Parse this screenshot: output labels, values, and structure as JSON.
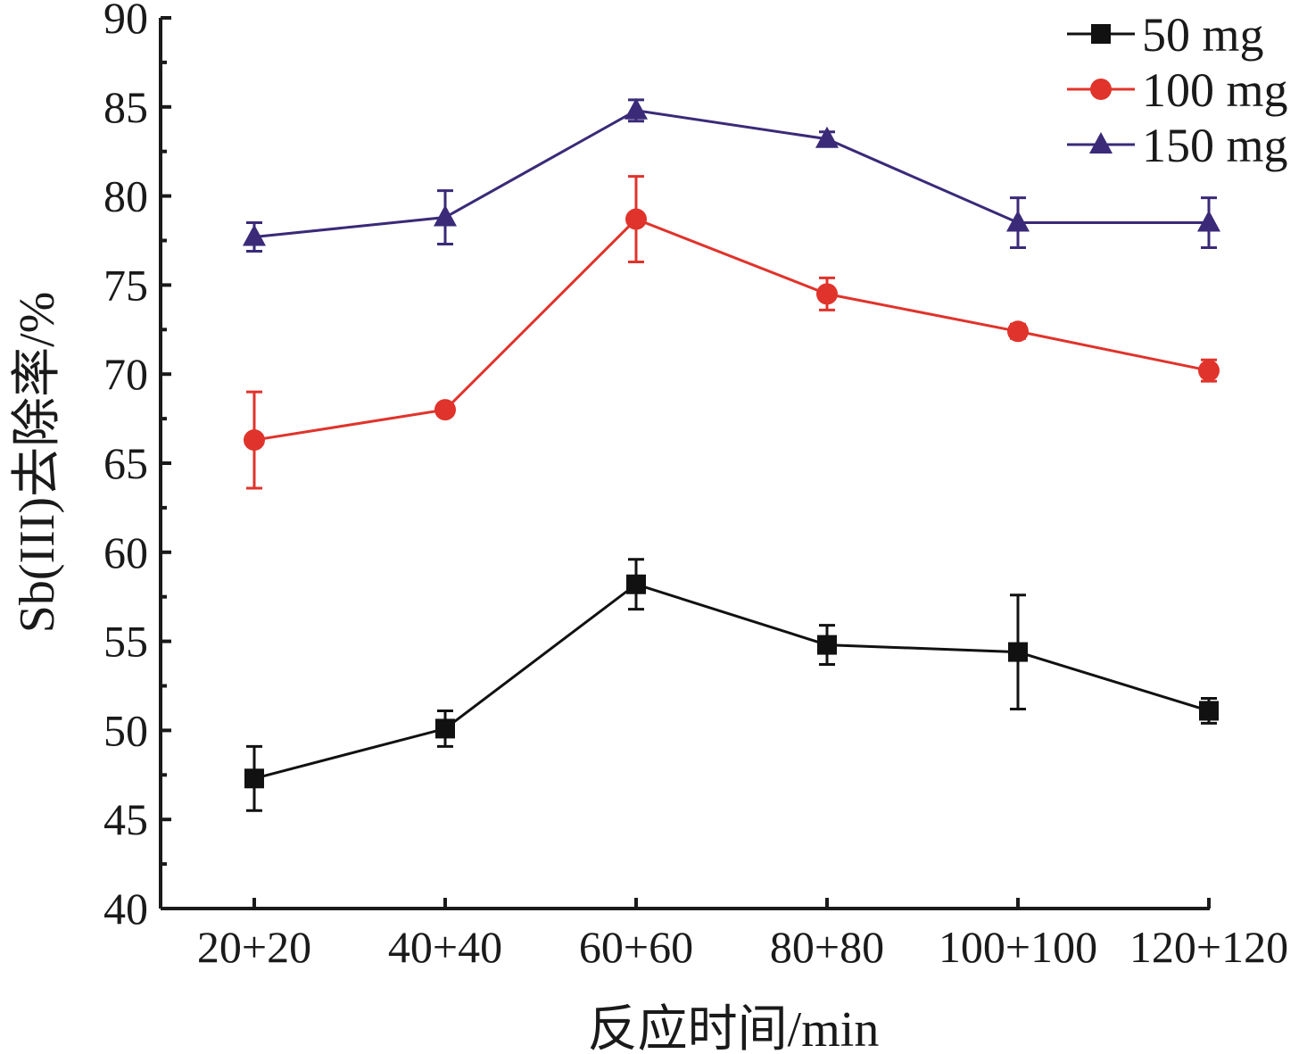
{
  "chart_data": {
    "type": "line",
    "title": "",
    "xlabel": "反应时间/min",
    "ylabel": "Sb(III)去除率/%",
    "categories": [
      "20+20",
      "40+40",
      "60+60",
      "80+80",
      "100+100",
      "120+120"
    ],
    "ylim": [
      40,
      90
    ],
    "yticks": [
      "40",
      "45",
      "50",
      "55",
      "60",
      "65",
      "70",
      "75",
      "80",
      "85",
      "90"
    ],
    "grid": false,
    "legend_position": "top-right",
    "series": [
      {
        "name": "50 mg",
        "color": "#111111",
        "marker": "square",
        "values": [
          47.3,
          50.1,
          58.2,
          54.8,
          54.4,
          51.1
        ],
        "errors": [
          1.8,
          1.0,
          1.4,
          1.1,
          3.2,
          0.7
        ]
      },
      {
        "name": "100 mg",
        "color": "#e0332b",
        "marker": "circle",
        "values": [
          66.3,
          68.0,
          78.7,
          74.5,
          72.4,
          70.2
        ],
        "errors": [
          2.7,
          0.3,
          2.4,
          0.9,
          0.4,
          0.6
        ]
      },
      {
        "name": "150 mg",
        "color": "#3a2a78",
        "marker": "triangle",
        "values": [
          77.7,
          78.8,
          84.8,
          83.2,
          78.5,
          78.5
        ],
        "errors": [
          0.8,
          1.5,
          0.6,
          0.4,
          1.4,
          1.4
        ]
      }
    ]
  }
}
